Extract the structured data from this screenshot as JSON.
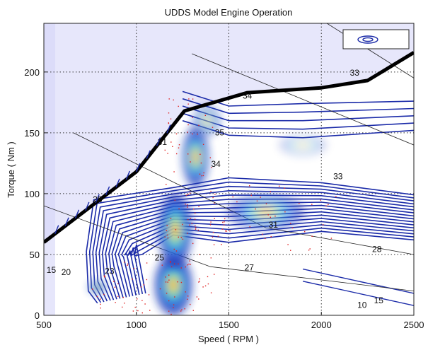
{
  "chart_data": {
    "type": "heatmap",
    "title": "UDDS Model Engine Operation",
    "xlabel": "Speed ( RPM )",
    "ylabel": "Torque ( Nm )",
    "xlim": [
      500,
      2500
    ],
    "ylim": [
      0,
      240
    ],
    "xticks": [
      500,
      1000,
      1500,
      2000,
      2500
    ],
    "yticks": [
      0,
      50,
      100,
      150,
      200
    ],
    "grid": true,
    "legend": "top-right",
    "max_torque_curve": {
      "x": [
        500,
        1000,
        1260,
        1600,
        2000,
        2250,
        2500
      ],
      "y": [
        60,
        118,
        168,
        183,
        187,
        193,
        216
      ]
    },
    "contour_labels": [
      {
        "text": "33",
        "x": 2180,
        "y": 197
      },
      {
        "text": "34",
        "x": 1600,
        "y": 178
      },
      {
        "text": "35",
        "x": 1450,
        "y": 148
      },
      {
        "text": "31",
        "x": 1140,
        "y": 140
      },
      {
        "text": "34",
        "x": 1430,
        "y": 122
      },
      {
        "text": "33",
        "x": 2090,
        "y": 112
      },
      {
        "text": "28",
        "x": 790,
        "y": 93
      },
      {
        "text": "31",
        "x": 1740,
        "y": 72
      },
      {
        "text": "25",
        "x": 1125,
        "y": 45
      },
      {
        "text": "27",
        "x": 1610,
        "y": 37
      },
      {
        "text": "28",
        "x": 2300,
        "y": 52
      },
      {
        "text": "23",
        "x": 855,
        "y": 34
      },
      {
        "text": "20",
        "x": 620,
        "y": 33
      },
      {
        "text": "15",
        "x": 540,
        "y": 35
      },
      {
        "text": "10",
        "x": 2220,
        "y": 6
      },
      {
        "text": "15",
        "x": 2310,
        "y": 10
      }
    ],
    "operating_density": [
      {
        "x": 1200,
        "y": 25,
        "w": 200,
        "h": 50,
        "level": 0.95
      },
      {
        "x": 1210,
        "y": 70,
        "w": 180,
        "h": 60,
        "level": 0.9
      },
      {
        "x": 1320,
        "y": 130,
        "w": 140,
        "h": 50,
        "level": 0.85
      },
      {
        "x": 1380,
        "y": 160,
        "w": 150,
        "h": 25,
        "level": 0.55
      },
      {
        "x": 1700,
        "y": 85,
        "w": 420,
        "h": 30,
        "level": 0.55
      },
      {
        "x": 790,
        "y": 23,
        "w": 90,
        "h": 10,
        "level": 0.9
      },
      {
        "x": 1900,
        "y": 140,
        "w": 260,
        "h": 18,
        "level": 0.25
      }
    ]
  }
}
